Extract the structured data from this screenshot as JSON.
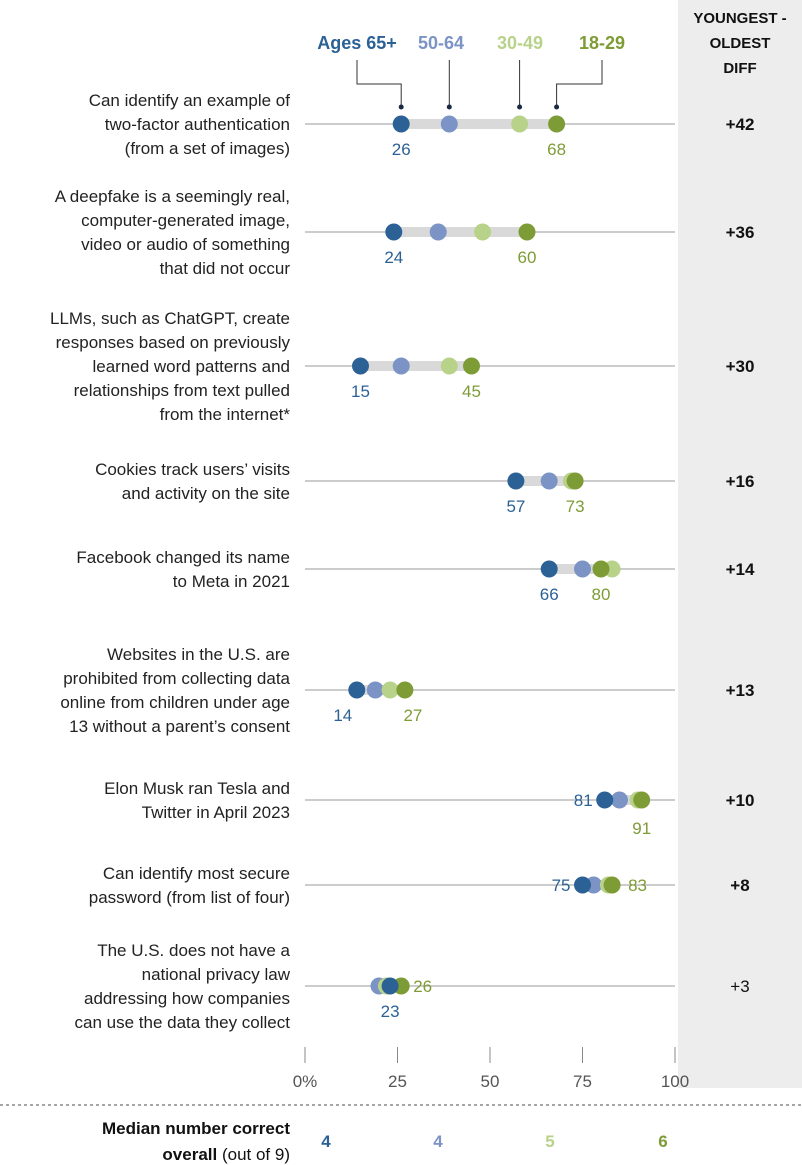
{
  "colors": {
    "ages_65_plus": "#2C6196",
    "ages_50_64": "#7B93C5",
    "ages_30_49": "#B9D28A",
    "ages_18_29": "#7E9C36",
    "range_bar": "#D9D9D9",
    "diff_panel": "#EDEDED"
  },
  "diff_header": [
    "YOUNGEST -",
    "OLDEST",
    "DIFF"
  ],
  "median": {
    "label_bold_1": "Median number correct",
    "label_bold_2": "overall",
    "label_plain": " (out of 9)",
    "values": [
      "4",
      "4",
      "5",
      "6"
    ]
  },
  "chart_data": {
    "type": "dot",
    "xlim": [
      0,
      100
    ],
    "xticks": [
      "0%",
      "25",
      "50",
      "75",
      "100"
    ],
    "legend_position": "top",
    "series": [
      {
        "name": "Ages 65+",
        "key": "ages_65_plus"
      },
      {
        "name": "50-64",
        "key": "ages_50_64"
      },
      {
        "name": "30-49",
        "key": "ages_30_49"
      },
      {
        "name": "18-29",
        "key": "ages_18_29"
      }
    ],
    "rows": [
      {
        "label": [
          "Can identify an example of",
          "two-factor authentication",
          "(from a set of images)"
        ],
        "values": [
          26,
          39,
          58,
          68
        ],
        "diff": "+42",
        "low_label": "26",
        "high_label": "68",
        "bold_diff": true
      },
      {
        "label": [
          "A deepfake is a seemingly real,",
          "computer-generated image,",
          "video or audio of something",
          "that did not occur"
        ],
        "values": [
          24,
          36,
          48,
          60
        ],
        "diff": "+36",
        "low_label": "24",
        "high_label": "60",
        "bold_diff": true
      },
      {
        "label": [
          "LLMs, such as ChatGPT, create",
          "responses based on previously",
          "learned word patterns and",
          "relationships from text pulled",
          "from the internet*"
        ],
        "values": [
          15,
          26,
          39,
          45
        ],
        "diff": "+30",
        "low_label": "15",
        "high_label": "45",
        "bold_diff": true
      },
      {
        "label": [
          "Cookies track users’ visits",
          "and activity on the site"
        ],
        "values": [
          57,
          66,
          72,
          73
        ],
        "diff": "+16",
        "low_label": "57",
        "high_label": "73",
        "bold_diff": true
      },
      {
        "label": [
          "Facebook changed its name",
          "to Meta in 2021"
        ],
        "values": [
          66,
          75,
          83,
          80
        ],
        "diff": "+14",
        "low_label": "66",
        "high_label": "80",
        "bold_diff": true
      },
      {
        "label": [
          "Websites in the U.S. are",
          "prohibited from collecting data",
          "online from children under age",
          "13 without a parent’s consent"
        ],
        "values": [
          14,
          19,
          23,
          27
        ],
        "diff": "+13",
        "low_label": "14",
        "high_label": "27",
        "bold_diff": true
      },
      {
        "label": [
          "Elon Musk ran Tesla and",
          "Twitter in April 2023"
        ],
        "values": [
          81,
          85,
          90,
          91
        ],
        "diff": "+10",
        "low_label": "81",
        "high_label": "91",
        "bold_diff": true
      },
      {
        "label": [
          "Can identify most secure",
          "password (from list of four)"
        ],
        "values": [
          75,
          78,
          82,
          83
        ],
        "diff": "+8",
        "low_label": "75",
        "high_label": "83",
        "bold_diff": true
      },
      {
        "label": [
          "The U.S. does not have a",
          "national privacy law",
          "addressing how companies",
          "can use the data they collect"
        ],
        "values": [
          23,
          20,
          22,
          26
        ],
        "diff": "+3",
        "low_label": "23",
        "high_label": "26",
        "bold_diff": false
      }
    ]
  }
}
